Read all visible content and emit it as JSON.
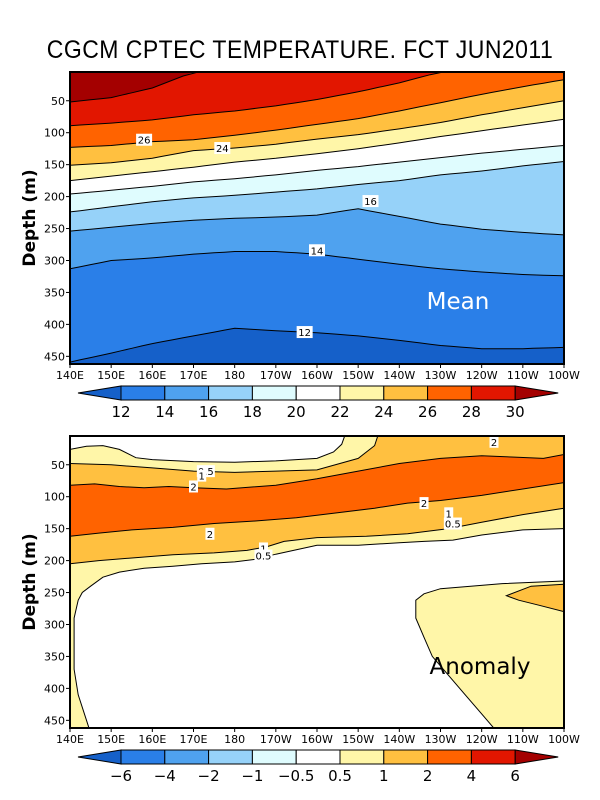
{
  "chart_data": [
    {
      "type": "heatmap",
      "subtype": "filled-contour depth-longitude section",
      "title": "CGCM CPTEC TEMPERATURE. FCT JUN2011",
      "panel_label": "Mean",
      "xlabel": "",
      "ylabel": "Depth (m)",
      "x_ticks": [
        "140E",
        "150E",
        "160E",
        "170E",
        "180",
        "170W",
        "160W",
        "150W",
        "140W",
        "130W",
        "120W",
        "110W",
        "100W"
      ],
      "x_range_deg_east": [
        140,
        260
      ],
      "y_ticks": [
        50,
        100,
        150,
        200,
        250,
        300,
        350,
        400,
        450
      ],
      "y_range": [
        5,
        462
      ],
      "y_inverted": true,
      "levels": [
        12,
        14,
        16,
        18,
        20,
        22,
        24,
        26,
        28,
        30
      ],
      "colors": [
        "#1560c9",
        "#2a7fe8",
        "#4fa2ef",
        "#96d2f9",
        "#dffcfe",
        "#ffffff",
        "#fff6a8",
        "#ffc040",
        "#ff6300",
        "#e21600",
        "#a40000"
      ],
      "colorbar_labels": [
        "12",
        "14",
        "16",
        "18",
        "20",
        "22",
        "24",
        "26",
        "28",
        "30"
      ],
      "contour_labels": [
        {
          "text": "26",
          "lon": 158,
          "depth": 111
        },
        {
          "text": "24",
          "lon": 177,
          "depth": 124
        },
        {
          "text": "16",
          "lon": 213,
          "depth": 207
        },
        {
          "text": "14",
          "lon": 200,
          "depth": 284
        },
        {
          "text": "12",
          "lon": 197,
          "depth": 412
        }
      ],
      "isolines": {
        "lon": [
          140,
          150,
          160,
          170,
          180,
          190,
          200,
          210,
          220,
          230,
          240,
          250,
          260
        ],
        "30": [
          52,
          45,
          30,
          5,
          null,
          null,
          null,
          null,
          null,
          null,
          null,
          null,
          null
        ],
        "28": [
          89,
          85,
          80,
          72,
          66,
          58,
          48,
          36,
          22,
          5,
          null,
          null,
          null
        ],
        "26": [
          123,
          120,
          114,
          111,
          104,
          96,
          87,
          78,
          66,
          53,
          40,
          28,
          17
        ],
        "24": [
          151,
          147,
          140,
          128,
          124,
          118,
          110,
          103,
          94,
          84,
          72,
          61,
          50
        ],
        "22": [
          175,
          168,
          161,
          154,
          146,
          140,
          133,
          125,
          116,
          106,
          97,
          88,
          79
        ],
        "20": [
          196,
          190,
          184,
          177,
          172,
          166,
          159,
          153,
          146,
          139,
          132,
          126,
          120
        ],
        "18": [
          224,
          216,
          208,
          202,
          198,
          193,
          188,
          181,
          175,
          166,
          160,
          152,
          145
        ],
        "16": [
          254,
          248,
          242,
          237,
          234,
          232,
          229,
          219,
          231,
          243,
          251,
          256,
          260
        ],
        "14": [
          313,
          300,
          296,
          290,
          286,
          286,
          290,
          298,
          306,
          313,
          318,
          322,
          324
        ],
        "12": [
          459,
          445,
          430,
          418,
          406,
          410,
          413,
          418,
          425,
          433,
          438,
          438,
          436
        ]
      }
    },
    {
      "type": "heatmap",
      "subtype": "filled-contour depth-longitude section",
      "panel_label": "Anomaly",
      "xlabel": "",
      "ylabel": "Depth (m)",
      "x_ticks": [
        "140E",
        "150E",
        "160E",
        "170E",
        "180",
        "170W",
        "160W",
        "150W",
        "140W",
        "130W",
        "120W",
        "110W",
        "100W"
      ],
      "x_range_deg_east": [
        140,
        260
      ],
      "y_ticks": [
        50,
        100,
        150,
        200,
        250,
        300,
        350,
        400,
        450
      ],
      "y_range": [
        5,
        462
      ],
      "y_inverted": true,
      "levels": [
        -6,
        -4,
        -2,
        -1,
        -0.5,
        0.5,
        1,
        2,
        4,
        6
      ],
      "colors": [
        "#1560c9",
        "#2a7fe8",
        "#4fa2ef",
        "#96d2f9",
        "#dffcfe",
        "#ffffff",
        "#fff6a8",
        "#ffc040",
        "#ff6300",
        "#e21600",
        "#a40000"
      ],
      "colorbar_labels": [
        "-6",
        "-4",
        "-2",
        "-1",
        "-0.5",
        "0.5",
        "1",
        "2",
        "4",
        "6"
      ],
      "contour_labels": [
        {
          "text": "0.5",
          "lon": 173,
          "depth": 60
        },
        {
          "text": "1",
          "lon": 172,
          "depth": 67
        },
        {
          "text": "2",
          "lon": 170,
          "depth": 84
        },
        {
          "text": "2",
          "lon": 174,
          "depth": 158
        },
        {
          "text": "1",
          "lon": 187,
          "depth": 181
        },
        {
          "text": "0.5",
          "lon": 187,
          "depth": 192
        },
        {
          "text": "2",
          "lon": 243,
          "depth": 14
        },
        {
          "text": "2",
          "lon": 226,
          "depth": 110
        },
        {
          "text": "1",
          "lon": 232,
          "depth": 126
        },
        {
          "text": "0.5",
          "lon": 233,
          "depth": 142
        }
      ],
      "regions": {
        "anomaly_gt_2_core": "140E-100W, ~90-190m deep at west, shoaling to ~40-110m in the east",
        "anomaly_1_to_2_patch_east": "~110W-100W, 250-300m",
        "anomaly_0.5_to_1_tongue": "~135W-100W, from ~220m to 460m",
        "anomaly_below_0.5": "upper-left surface 160E-160W (0-60m) and deep west/central (>230m)"
      }
    }
  ]
}
